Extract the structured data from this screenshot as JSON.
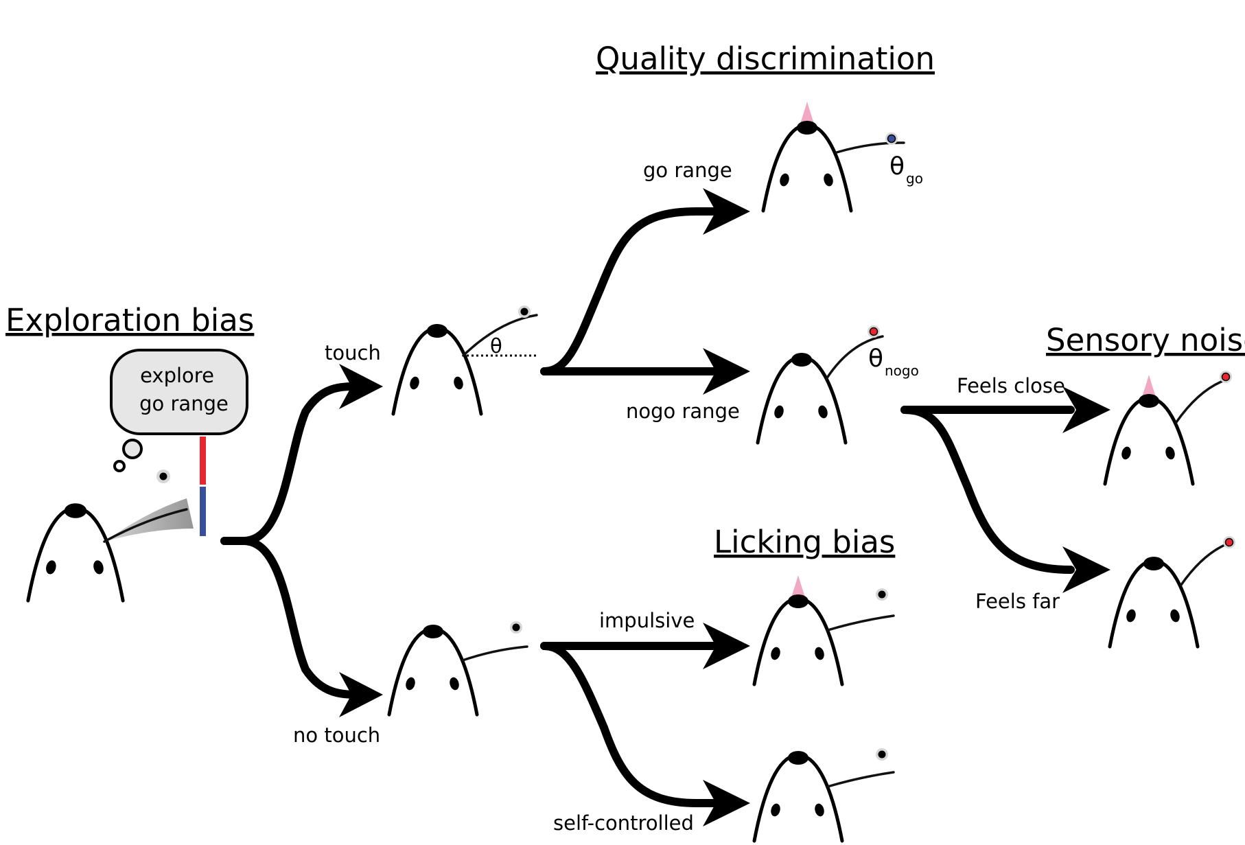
{
  "headings": {
    "exploration_bias": "Exploration bias",
    "quality_discrimination": "Quality discrimination",
    "licking_bias": "Licking bias",
    "sensory_noise": "Sensory noise"
  },
  "thought_bubble": {
    "line1": "explore",
    "line2": "go range"
  },
  "labels": {
    "touch": "touch",
    "no_touch": "no touch",
    "go_range": "go range",
    "nogo_range": "nogo range",
    "impulsive": "impulsive",
    "self_controlled": "self-controlled",
    "feels_close": "Feels close",
    "feels_far": "Feels far"
  },
  "angles": {
    "theta": "θ",
    "theta_go_symbol": "θ",
    "theta_go_subscript": "go",
    "theta_nogo_symbol": "θ",
    "theta_nogo_subscript": "nogo"
  },
  "colors": {
    "lick": "#f2a7c3",
    "go_pole": "#3a4f9b",
    "nogo_pole": "#e8262e",
    "pole_halo": "#d6d6d6",
    "bubble_fill": "#e6e6e7",
    "range_red": "#e8262e",
    "range_blue": "#3a4f9b"
  }
}
